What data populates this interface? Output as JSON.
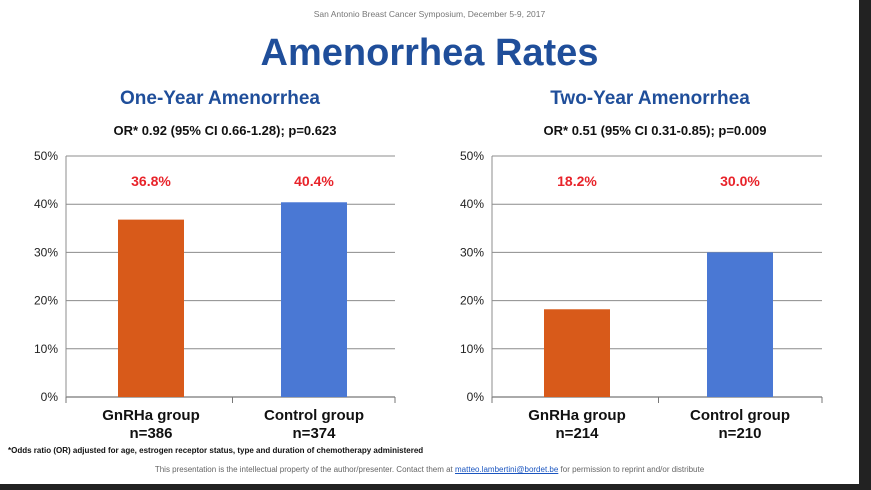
{
  "header_note": "San Antonio Breast Cancer Symposium, December 5-9, 2017",
  "title": "Amenorrhea Rates",
  "footnote": "*Odds ratio (OR) adjusted for age, estrogen receptor status, type and duration of chemotherapy administered",
  "footer": {
    "before": "This presentation is the intellectual property of the author/presenter. Contact them at",
    "email": "matteo.lambertini@bordet.be",
    "after": "for permission to reprint and/or distribute"
  },
  "colors": {
    "gnrha": "#d85a1a",
    "control": "#4a78d4",
    "label": "#e8232a",
    "title": "#1f4e9a"
  },
  "chart_data": [
    {
      "type": "bar",
      "title": "One-Year Amenorrhea",
      "subtitle": "OR* 0.92 (95% CI 0.66-1.28); p=0.623",
      "categories": [
        "GnRHa group",
        "Control group"
      ],
      "sample_sizes": [
        "n=386",
        "n=374"
      ],
      "values": [
        36.8,
        40.4
      ],
      "data_labels": [
        "36.8%",
        "40.4%"
      ],
      "yticks": [
        "0%",
        "10%",
        "20%",
        "30%",
        "40%",
        "50%"
      ],
      "ylim": [
        0,
        50
      ],
      "grid": true
    },
    {
      "type": "bar",
      "title": "Two-Year Amenorrhea",
      "subtitle": "OR* 0.51 (95% CI 0.31-0.85); p=0.009",
      "categories": [
        "GnRHa group",
        "Control group"
      ],
      "sample_sizes": [
        "n=214",
        "n=210"
      ],
      "values": [
        18.2,
        30.0
      ],
      "data_labels": [
        "18.2%",
        "30.0%"
      ],
      "yticks": [
        "0%",
        "10%",
        "20%",
        "30%",
        "40%",
        "50%"
      ],
      "ylim": [
        0,
        50
      ],
      "grid": true
    }
  ]
}
